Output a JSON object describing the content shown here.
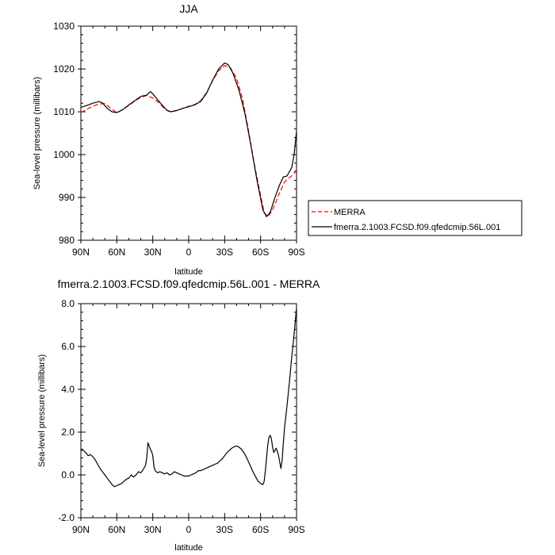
{
  "chart_data": [
    {
      "type": "line",
      "title": "JJA",
      "xlabel": "latitude",
      "ylabel": "Sea-level pressure (millibars)",
      "xlim": [
        90,
        -90
      ],
      "ylim": [
        980,
        1030
      ],
      "x_ticks": [
        90,
        60,
        30,
        0,
        -30,
        -60,
        -90
      ],
      "x_tick_labels": [
        "90N",
        "60N",
        "30N",
        "0",
        "30S",
        "60S",
        "90S"
      ],
      "y_ticks": [
        980,
        990,
        1000,
        1010,
        1020,
        1030
      ],
      "y_tick_labels": [
        "980",
        "990",
        "1000",
        "1010",
        "1020",
        "1030"
      ],
      "legend": {
        "placement": "right-outside"
      },
      "series": [
        {
          "name": "MERRA",
          "color": "#ff0000",
          "dash": true,
          "points": [
            [
              90,
              1009.8
            ],
            [
              85,
              1010.6
            ],
            [
              80,
              1011.3
            ],
            [
              75,
              1011.8
            ],
            [
              70,
              1011.9
            ],
            [
              65,
              1010.8
            ],
            [
              60,
              1009.8
            ],
            [
              55,
              1010.5
            ],
            [
              50,
              1011.5
            ],
            [
              45,
              1012.5
            ],
            [
              40,
              1013.4
            ],
            [
              35,
              1013.8
            ],
            [
              30,
              1013.2
            ],
            [
              25,
              1012.2
            ],
            [
              20,
              1010.6
            ],
            [
              15,
              1010.0
            ],
            [
              10,
              1010.3
            ],
            [
              5,
              1010.8
            ],
            [
              0,
              1011.3
            ],
            [
              -5,
              1011.7
            ],
            [
              -10,
              1012.6
            ],
            [
              -15,
              1014.5
            ],
            [
              -20,
              1017.3
            ],
            [
              -25,
              1019.6
            ],
            [
              -30,
              1020.8
            ],
            [
              -35,
              1020.2
            ],
            [
              -40,
              1017.8
            ],
            [
              -45,
              1013.0
            ],
            [
              -50,
              1005.5
            ],
            [
              -55,
              997.5
            ],
            [
              -60,
              990.5
            ],
            [
              -63,
              986.5
            ],
            [
              -66,
              985.5
            ],
            [
              -70,
              987.0
            ],
            [
              -75,
              990.5
            ],
            [
              -80,
              993.6
            ],
            [
              -85,
              994.8
            ],
            [
              -88,
              995.6
            ],
            [
              -90,
              996.5
            ]
          ]
        },
        {
          "name": "fmerra.2.1003.FCSD.f09.qfedcmip.56L.001",
          "color": "#000000",
          "dash": false,
          "points": [
            [
              90,
              1011.0
            ],
            [
              85,
              1011.5
            ],
            [
              80,
              1012.0
            ],
            [
              75,
              1012.4
            ],
            [
              72,
              1012.1
            ],
            [
              68,
              1010.8
            ],
            [
              64,
              1010.0
            ],
            [
              60,
              1009.8
            ],
            [
              55,
              1010.5
            ],
            [
              50,
              1011.6
            ],
            [
              45,
              1012.6
            ],
            [
              40,
              1013.6
            ],
            [
              35,
              1013.9
            ],
            [
              32,
              1014.7
            ],
            [
              30,
              1014.2
            ],
            [
              27,
              1013.2
            ],
            [
              22,
              1011.5
            ],
            [
              18,
              1010.3
            ],
            [
              15,
              1010.0
            ],
            [
              10,
              1010.3
            ],
            [
              5,
              1010.8
            ],
            [
              0,
              1011.2
            ],
            [
              -5,
              1011.6
            ],
            [
              -10,
              1012.4
            ],
            [
              -15,
              1014.4
            ],
            [
              -20,
              1017.4
            ],
            [
              -25,
              1020.0
            ],
            [
              -30,
              1021.4
            ],
            [
              -33,
              1021.0
            ],
            [
              -37,
              1019.0
            ],
            [
              -42,
              1015.0
            ],
            [
              -47,
              1009.5
            ],
            [
              -52,
              1002.0
            ],
            [
              -57,
              994.0
            ],
            [
              -62,
              987.0
            ],
            [
              -65,
              985.5
            ],
            [
              -68,
              986.5
            ],
            [
              -72,
              990.0
            ],
            [
              -76,
              993.0
            ],
            [
              -79,
              994.8
            ],
            [
              -82,
              995.0
            ],
            [
              -86,
              997.0
            ],
            [
              -88,
              1000.0
            ],
            [
              -90,
              1005.5
            ]
          ]
        }
      ]
    },
    {
      "type": "line",
      "title": "fmerra.2.1003.FCSD.f09.qfedcmip.56L.001 - MERRA",
      "xlabel": "latitude",
      "ylabel": "Sea-level pressure (millibars)",
      "xlim": [
        90,
        -90
      ],
      "ylim": [
        -2,
        8
      ],
      "x_ticks": [
        90,
        60,
        30,
        0,
        -30,
        -60,
        -90
      ],
      "x_tick_labels": [
        "90N",
        "60N",
        "30N",
        "0",
        "30S",
        "60S",
        "90S"
      ],
      "y_ticks": [
        -2,
        0,
        2,
        4,
        6,
        8
      ],
      "y_tick_labels": [
        "-2.0",
        "0.0",
        "2.0",
        "4.0",
        "6.0",
        "8.0"
      ],
      "series": [
        {
          "color": "#000000",
          "dash": false,
          "points": [
            [
              90,
              1.15
            ],
            [
              88,
              1.15
            ],
            [
              86,
              1.05
            ],
            [
              84,
              0.9
            ],
            [
              82,
              0.95
            ],
            [
              80,
              0.85
            ],
            [
              78,
              0.7
            ],
            [
              76,
              0.5
            ],
            [
              74,
              0.3
            ],
            [
              72,
              0.15
            ],
            [
              70,
              0.0
            ],
            [
              68,
              -0.15
            ],
            [
              66,
              -0.3
            ],
            [
              64,
              -0.45
            ],
            [
              62,
              -0.55
            ],
            [
              60,
              -0.5
            ],
            [
              58,
              -0.45
            ],
            [
              56,
              -0.4
            ],
            [
              54,
              -0.3
            ],
            [
              52,
              -0.2
            ],
            [
              50,
              -0.15
            ],
            [
              48,
              0.0
            ],
            [
              46,
              -0.1
            ],
            [
              44,
              0.0
            ],
            [
              42,
              0.15
            ],
            [
              40,
              0.1
            ],
            [
              38,
              0.25
            ],
            [
              36,
              0.45
            ],
            [
              35,
              0.8
            ],
            [
              34,
              1.5
            ],
            [
              33,
              1.35
            ],
            [
              32,
              1.2
            ],
            [
              31,
              1.1
            ],
            [
              30,
              0.9
            ],
            [
              29,
              0.4
            ],
            [
              28,
              0.2
            ],
            [
              26,
              0.1
            ],
            [
              24,
              0.15
            ],
            [
              22,
              0.1
            ],
            [
              20,
              0.05
            ],
            [
              18,
              0.1
            ],
            [
              16,
              0.0
            ],
            [
              14,
              0.05
            ],
            [
              12,
              0.15
            ],
            [
              10,
              0.1
            ],
            [
              8,
              0.05
            ],
            [
              6,
              0.0
            ],
            [
              4,
              -0.05
            ],
            [
              2,
              -0.05
            ],
            [
              0,
              -0.05
            ],
            [
              -2,
              0.0
            ],
            [
              -4,
              0.05
            ],
            [
              -6,
              0.1
            ],
            [
              -8,
              0.2
            ],
            [
              -10,
              0.2
            ],
            [
              -12,
              0.25
            ],
            [
              -14,
              0.3
            ],
            [
              -16,
              0.35
            ],
            [
              -18,
              0.4
            ],
            [
              -20,
              0.45
            ],
            [
              -22,
              0.5
            ],
            [
              -24,
              0.55
            ],
            [
              -26,
              0.65
            ],
            [
              -28,
              0.75
            ],
            [
              -30,
              0.9
            ],
            [
              -32,
              1.05
            ],
            [
              -34,
              1.15
            ],
            [
              -36,
              1.25
            ],
            [
              -38,
              1.32
            ],
            [
              -40,
              1.35
            ],
            [
              -42,
              1.3
            ],
            [
              -44,
              1.2
            ],
            [
              -46,
              1.05
            ],
            [
              -48,
              0.85
            ],
            [
              -50,
              0.6
            ],
            [
              -52,
              0.35
            ],
            [
              -54,
              0.1
            ],
            [
              -56,
              -0.1
            ],
            [
              -58,
              -0.3
            ],
            [
              -60,
              -0.4
            ],
            [
              -62,
              -0.45
            ],
            [
              -63,
              -0.3
            ],
            [
              -64,
              0.2
            ],
            [
              -65,
              0.8
            ],
            [
              -66,
              1.4
            ],
            [
              -67,
              1.75
            ],
            [
              -68,
              1.85
            ],
            [
              -69,
              1.7
            ],
            [
              -70,
              1.3
            ],
            [
              -71,
              1.05
            ],
            [
              -72,
              1.15
            ],
            [
              -73,
              1.25
            ],
            [
              -74,
              1.1
            ],
            [
              -75,
              0.9
            ],
            [
              -76,
              0.6
            ],
            [
              -77,
              0.3
            ],
            [
              -78,
              0.7
            ],
            [
              -79,
              1.5
            ],
            [
              -80,
              2.2
            ],
            [
              -82,
              3.2
            ],
            [
              -84,
              4.3
            ],
            [
              -86,
              5.5
            ],
            [
              -88,
              6.6
            ],
            [
              -90,
              7.8
            ]
          ]
        }
      ]
    }
  ]
}
